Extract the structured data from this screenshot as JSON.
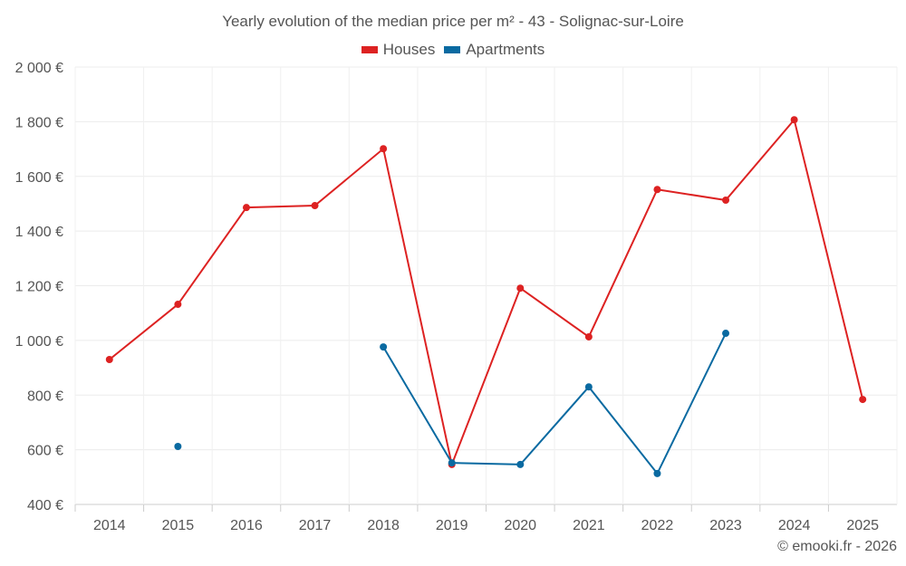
{
  "chart_data": {
    "type": "line",
    "title": "Yearly evolution of the median price per m² - 43 - Solignac-sur-Loire",
    "x": [
      "2014",
      "2015",
      "2016",
      "2017",
      "2018",
      "2019",
      "2020",
      "2021",
      "2022",
      "2023",
      "2024",
      "2025"
    ],
    "series": [
      {
        "name": "Houses",
        "color": "#dd2222",
        "values": [
          930,
          1132,
          1486,
          1493,
          1701,
          546,
          1191,
          1013,
          1552,
          1513,
          1807,
          784
        ]
      },
      {
        "name": "Apartments",
        "color": "#0a6aa1",
        "values": [
          null,
          612,
          null,
          null,
          976,
          552,
          546,
          830,
          513,
          1026,
          null,
          null
        ]
      }
    ],
    "ylim": [
      400,
      2000
    ],
    "yticks": [
      400,
      600,
      800,
      1000,
      1200,
      1400,
      1600,
      1800,
      2000
    ],
    "ytick_labels": [
      "400 €",
      "600 €",
      "800 €",
      "1 000 €",
      "1 200 €",
      "1 400 €",
      "1 600 €",
      "1 800 €",
      "2 000 €"
    ],
    "xlabel": "",
    "ylabel": "",
    "grid": true,
    "legend": "top-center"
  },
  "credit": "© emooki.fr - 2026"
}
